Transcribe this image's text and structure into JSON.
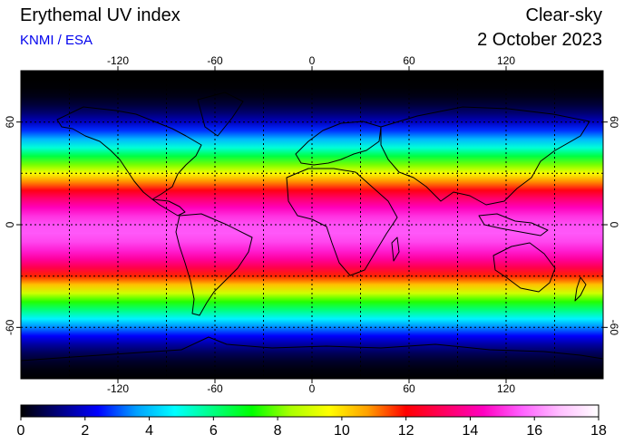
{
  "header": {
    "title": "Erythemal UV index",
    "source": "KNMI / ESA",
    "mode": "Clear-sky",
    "date": "2 October 2023"
  },
  "map": {
    "lon_range": [
      -180,
      180
    ],
    "lat_range": [
      -90,
      90
    ],
    "lon_ticks": [
      -120,
      -60,
      0,
      60,
      120
    ],
    "lat_ticks": [
      -60,
      0,
      60
    ],
    "grid_spacing_deg": 30,
    "grid_style": "dotted",
    "subsolar_latitude": -4,
    "background_color": "#000000"
  },
  "colorbar": {
    "min": 0,
    "max": 18,
    "tick_labels": [
      "0",
      "2",
      "4",
      "6",
      "8",
      "10",
      "12",
      "14",
      "16",
      "18"
    ],
    "stops": [
      "#000000",
      "#000080",
      "#0000ff",
      "#00a0ff",
      "#00ffff",
      "#00ff80",
      "#00ff00",
      "#aaff00",
      "#ffff00",
      "#ffa000",
      "#ff0000",
      "#ff0060",
      "#ff00c0",
      "#ff60ff",
      "#ffc0ff",
      "#ffffff"
    ]
  }
}
